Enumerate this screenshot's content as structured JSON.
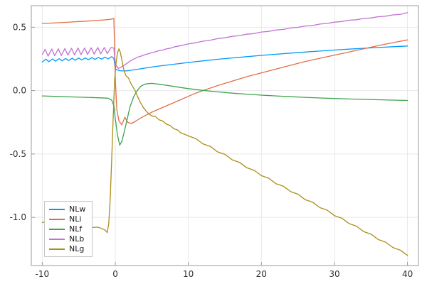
{
  "chart_data": {
    "type": "line",
    "title": "",
    "xlabel": "",
    "ylabel": "",
    "xlim": [
      -11.5,
      41.5
    ],
    "ylim": [
      -1.38,
      0.67
    ],
    "xticks": [
      -10,
      0,
      10,
      20,
      30,
      40
    ],
    "xtick_labels": [
      "-10",
      "0",
      "10",
      "20",
      "30",
      "40"
    ],
    "yticks": [
      -1.0,
      -0.5,
      0.0,
      0.5
    ],
    "ytick_labels": [
      "-1.0",
      "-0.5",
      "0.0",
      "0.5"
    ],
    "grid": true,
    "grid_color": "#e8e8ec",
    "frame_color": "#9b9b9b",
    "tick_label_color": "#2f2f2f",
    "legend_position": "bottom-left",
    "series": [
      {
        "name": "NLw",
        "color": "#009af9",
        "points": [
          [
            -10,
            0.225
          ],
          [
            -9.5,
            0.248
          ],
          [
            -9.1,
            0.228
          ],
          [
            -8.6,
            0.25
          ],
          [
            -8.2,
            0.232
          ],
          [
            -7.7,
            0.252
          ],
          [
            -7.3,
            0.235
          ],
          [
            -6.8,
            0.253
          ],
          [
            -6.4,
            0.237
          ],
          [
            -5.9,
            0.255
          ],
          [
            -5.5,
            0.24
          ],
          [
            -5,
            0.257
          ],
          [
            -4.6,
            0.242
          ],
          [
            -4.1,
            0.258
          ],
          [
            -3.7,
            0.244
          ],
          [
            -3.2,
            0.26
          ],
          [
            -2.8,
            0.246
          ],
          [
            -2.3,
            0.262
          ],
          [
            -1.9,
            0.248
          ],
          [
            -1.4,
            0.264
          ],
          [
            -1,
            0.25
          ],
          [
            -0.5,
            0.268
          ],
          [
            -0.2,
            0.255
          ],
          [
            0,
            0.17
          ],
          [
            0.5,
            0.158
          ],
          [
            1,
            0.155
          ],
          [
            1.5,
            0.156
          ],
          [
            2,
            0.16
          ],
          [
            3,
            0.168
          ],
          [
            4,
            0.177
          ],
          [
            5,
            0.186
          ],
          [
            6,
            0.194
          ],
          [
            8,
            0.208
          ],
          [
            10,
            0.222
          ],
          [
            12,
            0.235
          ],
          [
            14,
            0.247
          ],
          [
            16,
            0.258
          ],
          [
            18,
            0.268
          ],
          [
            20,
            0.278
          ],
          [
            22,
            0.287
          ],
          [
            24,
            0.296
          ],
          [
            26,
            0.304
          ],
          [
            28,
            0.312
          ],
          [
            30,
            0.32
          ],
          [
            32,
            0.327
          ],
          [
            34,
            0.334
          ],
          [
            36,
            0.34
          ],
          [
            38,
            0.346
          ],
          [
            40,
            0.352
          ]
        ]
      },
      {
        "name": "NLi",
        "color": "#e26e46",
        "points": [
          [
            -10,
            0.53
          ],
          [
            -9,
            0.532
          ],
          [
            -8,
            0.535
          ],
          [
            -7,
            0.538
          ],
          [
            -6,
            0.541
          ],
          [
            -5,
            0.545
          ],
          [
            -4,
            0.548
          ],
          [
            -3,
            0.552
          ],
          [
            -2,
            0.556
          ],
          [
            -1,
            0.56
          ],
          [
            -0.4,
            0.565
          ],
          [
            -0.2,
            0.57
          ],
          [
            0,
            0.1
          ],
          [
            0.2,
            -0.15
          ],
          [
            0.5,
            -0.24
          ],
          [
            0.9,
            -0.27
          ],
          [
            1.3,
            -0.21
          ],
          [
            1.7,
            -0.25
          ],
          [
            2.2,
            -0.26
          ],
          [
            2.8,
            -0.24
          ],
          [
            3.5,
            -0.215
          ],
          [
            4,
            -0.2
          ],
          [
            5,
            -0.17
          ],
          [
            6,
            -0.145
          ],
          [
            7,
            -0.12
          ],
          [
            8,
            -0.095
          ],
          [
            9,
            -0.07
          ],
          [
            10,
            -0.045
          ],
          [
            11,
            -0.02
          ],
          [
            12,
            0.0
          ],
          [
            14,
            0.04
          ],
          [
            16,
            0.075
          ],
          [
            18,
            0.11
          ],
          [
            20,
            0.14
          ],
          [
            22,
            0.17
          ],
          [
            24,
            0.2
          ],
          [
            26,
            0.23
          ],
          [
            28,
            0.255
          ],
          [
            30,
            0.28
          ],
          [
            32,
            0.305
          ],
          [
            34,
            0.33
          ],
          [
            36,
            0.355
          ],
          [
            38,
            0.378
          ],
          [
            40,
            0.4
          ]
        ]
      },
      {
        "name": "NLf",
        "color": "#3da44d",
        "points": [
          [
            -10,
            -0.042
          ],
          [
            -8,
            -0.046
          ],
          [
            -6,
            -0.05
          ],
          [
            -4,
            -0.053
          ],
          [
            -2,
            -0.057
          ],
          [
            -1,
            -0.06
          ],
          [
            -0.5,
            -0.075
          ],
          [
            -0.2,
            -0.12
          ],
          [
            0,
            -0.22
          ],
          [
            0.3,
            -0.35
          ],
          [
            0.6,
            -0.43
          ],
          [
            0.9,
            -0.4
          ],
          [
            1.2,
            -0.33
          ],
          [
            1.6,
            -0.23
          ],
          [
            2,
            -0.13
          ],
          [
            2.5,
            -0.05
          ],
          [
            3,
            0.0
          ],
          [
            3.5,
            0.035
          ],
          [
            4,
            0.05
          ],
          [
            4.5,
            0.055
          ],
          [
            5,
            0.057
          ],
          [
            6,
            0.05
          ],
          [
            7,
            0.042
          ],
          [
            8,
            0.033
          ],
          [
            9,
            0.024
          ],
          [
            10,
            0.016
          ],
          [
            12,
            0.002
          ],
          [
            14,
            -0.01
          ],
          [
            16,
            -0.02
          ],
          [
            18,
            -0.028
          ],
          [
            20,
            -0.036
          ],
          [
            22,
            -0.042
          ],
          [
            24,
            -0.048
          ],
          [
            26,
            -0.053
          ],
          [
            28,
            -0.058
          ],
          [
            30,
            -0.062
          ],
          [
            32,
            -0.066
          ],
          [
            34,
            -0.069
          ],
          [
            36,
            -0.072
          ],
          [
            38,
            -0.075
          ],
          [
            40,
            -0.078
          ]
        ]
      },
      {
        "name": "NLb",
        "color": "#c271d4",
        "points": [
          [
            -10,
            0.285
          ],
          [
            -9.6,
            0.325
          ],
          [
            -9.2,
            0.272
          ],
          [
            -8.7,
            0.328
          ],
          [
            -8.3,
            0.275
          ],
          [
            -7.8,
            0.33
          ],
          [
            -7.4,
            0.277
          ],
          [
            -6.9,
            0.332
          ],
          [
            -6.5,
            0.28
          ],
          [
            -6,
            0.334
          ],
          [
            -5.6,
            0.282
          ],
          [
            -5.1,
            0.336
          ],
          [
            -4.7,
            0.284
          ],
          [
            -4.2,
            0.337
          ],
          [
            -3.8,
            0.286
          ],
          [
            -3.3,
            0.338
          ],
          [
            -2.9,
            0.288
          ],
          [
            -2.4,
            0.34
          ],
          [
            -2,
            0.29
          ],
          [
            -1.5,
            0.34
          ],
          [
            -1.1,
            0.292
          ],
          [
            -0.6,
            0.34
          ],
          [
            -0.2,
            0.335
          ],
          [
            0,
            0.21
          ],
          [
            0.4,
            0.175
          ],
          [
            0.8,
            0.185
          ],
          [
            1.2,
            0.2
          ],
          [
            1.6,
            0.215
          ],
          [
            2,
            0.232
          ],
          [
            2.5,
            0.248
          ],
          [
            3,
            0.262
          ],
          [
            3.5,
            0.272
          ],
          [
            4,
            0.283
          ],
          [
            4.5,
            0.29
          ],
          [
            5,
            0.3
          ],
          [
            5.5,
            0.306
          ],
          [
            6,
            0.316
          ],
          [
            6.5,
            0.32
          ],
          [
            7,
            0.33
          ],
          [
            7.5,
            0.334
          ],
          [
            8,
            0.344
          ],
          [
            9,
            0.355
          ],
          [
            10,
            0.368
          ],
          [
            11,
            0.377
          ],
          [
            12,
            0.39
          ],
          [
            13,
            0.398
          ],
          [
            14,
            0.41
          ],
          [
            15,
            0.417
          ],
          [
            16,
            0.428
          ],
          [
            17,
            0.434
          ],
          [
            18,
            0.445
          ],
          [
            19,
            0.45
          ],
          [
            20,
            0.462
          ],
          [
            21,
            0.467
          ],
          [
            22,
            0.478
          ],
          [
            23,
            0.483
          ],
          [
            24,
            0.494
          ],
          [
            25,
            0.499
          ],
          [
            26,
            0.51
          ],
          [
            27,
            0.514
          ],
          [
            28,
            0.525
          ],
          [
            29,
            0.53
          ],
          [
            30,
            0.54
          ],
          [
            31,
            0.545
          ],
          [
            32,
            0.555
          ],
          [
            33,
            0.559
          ],
          [
            34,
            0.569
          ],
          [
            35,
            0.573
          ],
          [
            36,
            0.583
          ],
          [
            37,
            0.587
          ],
          [
            38,
            0.597
          ],
          [
            39,
            0.601
          ],
          [
            40,
            0.615
          ]
        ]
      },
      {
        "name": "NLg",
        "color": "#ac8d18",
        "points": [
          [
            -10,
            -1.04
          ],
          [
            -9.3,
            -1.035
          ],
          [
            -8.6,
            -1.05
          ],
          [
            -7.9,
            -1.045
          ],
          [
            -7.2,
            -1.058
          ],
          [
            -6.5,
            -1.052
          ],
          [
            -5.8,
            -1.065
          ],
          [
            -5.1,
            -1.06
          ],
          [
            -4.4,
            -1.072
          ],
          [
            -3.7,
            -1.068
          ],
          [
            -3,
            -1.08
          ],
          [
            -2.4,
            -1.077
          ],
          [
            -1.8,
            -1.09
          ],
          [
            -1.4,
            -1.1
          ],
          [
            -1.1,
            -1.12
          ],
          [
            -0.9,
            -1.05
          ],
          [
            -0.7,
            -0.85
          ],
          [
            -0.5,
            -0.55
          ],
          [
            -0.3,
            -0.22
          ],
          [
            -0.1,
            0.08
          ],
          [
            0.1,
            0.22
          ],
          [
            0.3,
            0.3
          ],
          [
            0.5,
            0.33
          ],
          [
            0.7,
            0.3
          ],
          [
            0.9,
            0.24
          ],
          [
            1.1,
            0.18
          ],
          [
            1.3,
            0.14
          ],
          [
            1.5,
            0.115
          ],
          [
            1.8,
            0.1
          ],
          [
            2.1,
            0.06
          ],
          [
            2.4,
            0.03
          ],
          [
            2.7,
            0.0
          ],
          [
            3,
            -0.04
          ],
          [
            3.4,
            -0.09
          ],
          [
            3.8,
            -0.13
          ],
          [
            4.2,
            -0.16
          ],
          [
            4.6,
            -0.185
          ],
          [
            5,
            -0.2
          ],
          [
            5.5,
            -0.205
          ],
          [
            6,
            -0.23
          ],
          [
            6.5,
            -0.24
          ],
          [
            7,
            -0.265
          ],
          [
            7.5,
            -0.275
          ],
          [
            8,
            -0.3
          ],
          [
            8.5,
            -0.31
          ],
          [
            9,
            -0.335
          ],
          [
            9.5,
            -0.345
          ],
          [
            10,
            -0.357
          ],
          [
            11,
            -0.378
          ],
          [
            12,
            -0.42
          ],
          [
            13,
            -0.44
          ],
          [
            14,
            -0.483
          ],
          [
            15,
            -0.503
          ],
          [
            16,
            -0.546
          ],
          [
            17,
            -0.566
          ],
          [
            18,
            -0.609
          ],
          [
            19,
            -0.629
          ],
          [
            20,
            -0.671
          ],
          [
            21,
            -0.691
          ],
          [
            22,
            -0.734
          ],
          [
            23,
            -0.754
          ],
          [
            24,
            -0.797
          ],
          [
            25,
            -0.817
          ],
          [
            26,
            -0.86
          ],
          [
            27,
            -0.88
          ],
          [
            28,
            -0.923
          ],
          [
            29,
            -0.943
          ],
          [
            30,
            -0.986
          ],
          [
            31,
            -1.006
          ],
          [
            32,
            -1.049
          ],
          [
            33,
            -1.069
          ],
          [
            34,
            -1.112
          ],
          [
            35,
            -1.132
          ],
          [
            36,
            -1.175
          ],
          [
            37,
            -1.195
          ],
          [
            38,
            -1.238
          ],
          [
            39,
            -1.258
          ],
          [
            40,
            -1.3
          ]
        ]
      }
    ]
  }
}
